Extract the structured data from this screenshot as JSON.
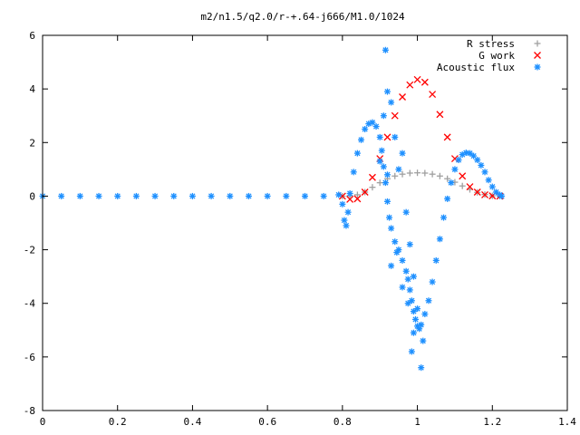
{
  "chart_data": {
    "type": "scatter",
    "title": "m2/n1.5/q2.0/r-+.64-j666/M1.0/1024",
    "xlabel": "",
    "ylabel": "",
    "xlim": [
      0,
      1.4
    ],
    "ylim": [
      -8,
      6
    ],
    "xticks": [
      "0",
      "0.2",
      "0.4",
      "0.6",
      "0.8",
      "1",
      "1.2",
      "1.4"
    ],
    "yticks": [
      "-8",
      "-6",
      "-4",
      "-2",
      "0",
      "2",
      "4",
      "6"
    ],
    "grid": false,
    "legend_position": "top-right",
    "series": [
      {
        "name": "R stress",
        "marker": "plus",
        "color": "#a0a0a0",
        "x": [
          0.8,
          0.82,
          0.84,
          0.86,
          0.88,
          0.9,
          0.92,
          0.94,
          0.96,
          0.98,
          1.0,
          1.02,
          1.04,
          1.06,
          1.08,
          1.1,
          1.12,
          1.14,
          1.16,
          1.18,
          1.2,
          1.22
        ],
        "y": [
          0.0,
          0.01,
          0.05,
          0.15,
          0.33,
          0.5,
          0.65,
          0.75,
          0.82,
          0.86,
          0.87,
          0.86,
          0.82,
          0.75,
          0.65,
          0.52,
          0.38,
          0.25,
          0.14,
          0.06,
          0.01,
          0.0
        ]
      },
      {
        "name": "G work",
        "marker": "cross",
        "color": "#ff0000",
        "x": [
          0.8,
          0.82,
          0.84,
          0.86,
          0.88,
          0.9,
          0.92,
          0.94,
          0.96,
          0.98,
          1.0,
          1.02,
          1.04,
          1.06,
          1.08,
          1.1,
          1.12,
          1.14,
          1.16,
          1.18,
          1.2,
          1.22
        ],
        "y": [
          0.0,
          -0.12,
          -0.1,
          0.15,
          0.7,
          1.4,
          2.2,
          3.0,
          3.7,
          4.15,
          4.35,
          4.25,
          3.8,
          3.05,
          2.2,
          1.4,
          0.75,
          0.35,
          0.15,
          0.05,
          0.01,
          0.0
        ]
      },
      {
        "name": "Acoustic flux",
        "marker": "star",
        "color": "#1e90ff",
        "x": [
          0.0,
          0.05,
          0.1,
          0.15,
          0.2,
          0.25,
          0.3,
          0.35,
          0.4,
          0.45,
          0.5,
          0.55,
          0.6,
          0.65,
          0.7,
          0.75,
          0.79,
          0.8,
          0.805,
          0.81,
          0.815,
          0.82,
          0.83,
          0.84,
          0.85,
          0.86,
          0.87,
          0.88,
          0.89,
          0.9,
          0.905,
          0.91,
          0.915,
          0.92,
          0.925,
          0.93,
          0.94,
          0.95,
          0.96,
          0.97,
          0.975,
          0.98,
          0.985,
          0.99,
          0.995,
          1.0,
          1.005,
          1.01,
          1.02,
          1.03,
          1.04,
          1.05,
          1.06,
          1.07,
          1.08,
          1.09,
          1.1,
          1.11,
          1.12,
          1.13,
          1.14,
          1.15,
          1.16,
          1.17,
          1.18,
          1.19,
          1.2,
          1.21,
          1.22,
          1.225,
          0.915,
          0.92,
          0.93,
          0.91,
          0.94,
          0.92,
          0.95,
          0.9,
          0.96,
          0.97,
          0.98,
          0.99,
          1.0,
          1.01,
          0.985,
          1.015,
          0.99,
          0.975,
          0.96,
          0.93,
          0.945
        ],
        "y": [
          0,
          0,
          0,
          0,
          0,
          0,
          0,
          0,
          0,
          0,
          0,
          0,
          0,
          0,
          0,
          0,
          0.05,
          -0.3,
          -0.9,
          -1.1,
          -0.6,
          0.1,
          0.9,
          1.6,
          2.1,
          2.5,
          2.7,
          2.75,
          2.6,
          2.2,
          1.7,
          1.1,
          0.5,
          -0.2,
          -0.8,
          -1.2,
          -1.7,
          -2.0,
          -2.4,
          -2.8,
          -3.1,
          -3.5,
          -3.9,
          -4.3,
          -4.6,
          -4.85,
          -4.95,
          -4.8,
          -4.4,
          -3.9,
          -3.2,
          -2.4,
          -1.6,
          -0.8,
          -0.1,
          0.5,
          1.0,
          1.35,
          1.55,
          1.62,
          1.6,
          1.5,
          1.35,
          1.15,
          0.9,
          0.6,
          0.35,
          0.15,
          0.05,
          0.0,
          5.45,
          3.9,
          3.5,
          3.0,
          2.2,
          0.8,
          1.0,
          1.3,
          1.6,
          -0.6,
          -1.8,
          -3.0,
          -4.2,
          -6.4,
          -5.8,
          -5.4,
          -5.1,
          -4.0,
          -3.4,
          -2.6,
          -2.1
        ]
      }
    ]
  }
}
